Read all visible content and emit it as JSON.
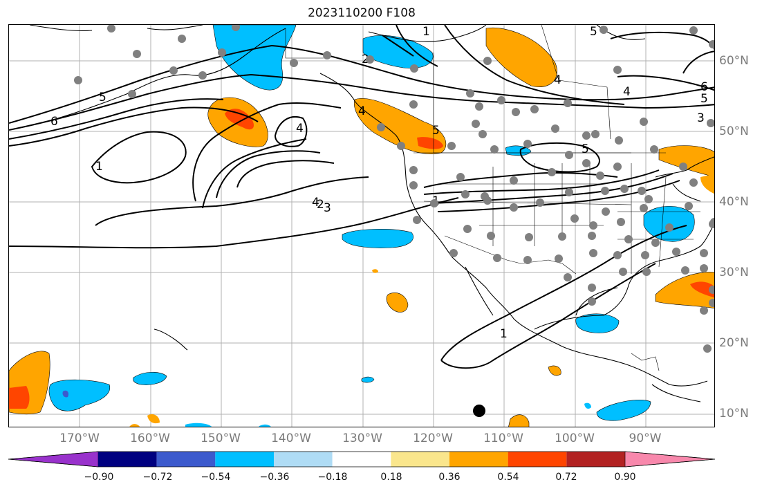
{
  "title": "2023110200 F108",
  "lon_labels": [
    "170°W",
    "160°W",
    "150°W",
    "140°W",
    "130°W",
    "120°W",
    "110°W",
    "100°W",
    "90°W"
  ],
  "lat_labels": [
    "60°N",
    "50°N",
    "40°N",
    "30°N",
    "20°N",
    "10°N"
  ],
  "colorbar": {
    "ticks": [
      "−0.90",
      "−0.72",
      "−0.54",
      "−0.36",
      "−0.18",
      "0.18",
      "0.36",
      "0.54",
      "0.72",
      "0.90"
    ],
    "colors": [
      "#9932cc",
      "#000080",
      "#3c5acd",
      "#00bfff",
      "#afdcf5",
      "#ffffff",
      "#fae68c",
      "#ffa500",
      "#ff4500",
      "#b22222",
      "#f888ac"
    ]
  },
  "contour_labels": [
    "1",
    "2",
    "3",
    "4",
    "5",
    "6"
  ],
  "colors": {
    "positive_mid": "#ffa500",
    "positive_high": "#ff4500",
    "negative_mid": "#00bfff",
    "negative_dark": "#3c5acd",
    "station": "#808080"
  }
}
